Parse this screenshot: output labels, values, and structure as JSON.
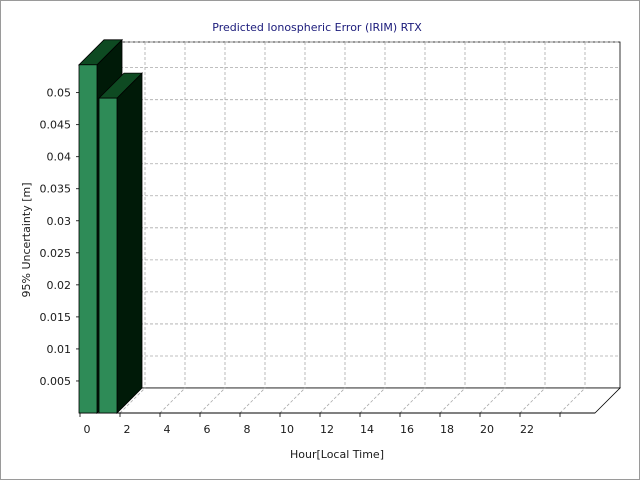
{
  "chart_data": {
    "type": "bar",
    "title": "Predicted Ionospheric Error (IRIM) RTX",
    "xlabel": "Hour[Local Time]",
    "ylabel": "95% Uncertainty [m]",
    "x_tick_labels": [
      "0",
      "2",
      "4",
      "6",
      "8",
      "10",
      "12",
      "14",
      "16",
      "18",
      "20",
      "22"
    ],
    "y_tick_labels": [
      "0.005",
      "0.01",
      "0.015",
      "0.02",
      "0.025",
      "0.03",
      "0.035",
      "0.04",
      "0.045",
      "0.05"
    ],
    "x_range": [
      0,
      24
    ],
    "ylim": [
      0,
      0.054
    ],
    "grid": true,
    "series": [
      {
        "x": [
          0,
          1
        ],
        "values": [
          0.0545,
          0.0493
        ],
        "color_front": "#2e8b57",
        "color_side": "#001a08",
        "color_top": "#0e4a22"
      }
    ],
    "colors": {
      "back_wall": "#ffffff",
      "left_wall": "#fffde6",
      "grid": "#aaaaaa",
      "axis": "#000000",
      "title": "#1a1a7a"
    }
  }
}
